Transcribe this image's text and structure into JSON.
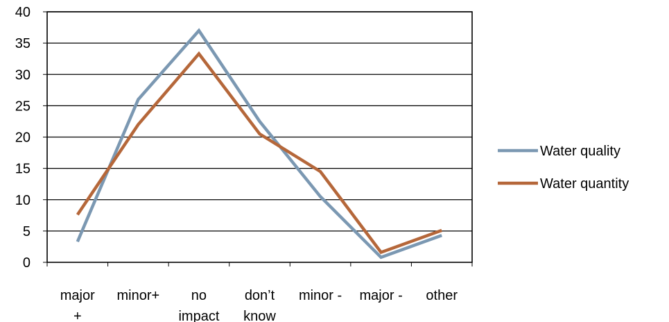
{
  "chart_data": {
    "type": "line",
    "title": "",
    "xlabel": "",
    "ylabel": "",
    "categories": [
      [
        "major",
        "+"
      ],
      [
        "minor+"
      ],
      [
        "no",
        "impact"
      ],
      [
        "don’t",
        "know"
      ],
      [
        "minor -"
      ],
      [
        "major -"
      ],
      [
        "other"
      ]
    ],
    "ylim": [
      0,
      40
    ],
    "yticks": [
      "0",
      "5",
      "10",
      "15",
      "20",
      "25",
      "30",
      "35",
      "40"
    ],
    "grid": "horizontal",
    "legend_position": "right",
    "series": [
      {
        "name": "Water quality",
        "color": "#7B98B2",
        "values": [
          3.3,
          26,
          37,
          22.5,
          10.5,
          0.8,
          4.3
        ]
      },
      {
        "name": "Water quantity",
        "color": "#B5673A",
        "values": [
          7.6,
          22,
          33.3,
          20.5,
          14.5,
          1.6,
          5.1
        ]
      }
    ]
  }
}
